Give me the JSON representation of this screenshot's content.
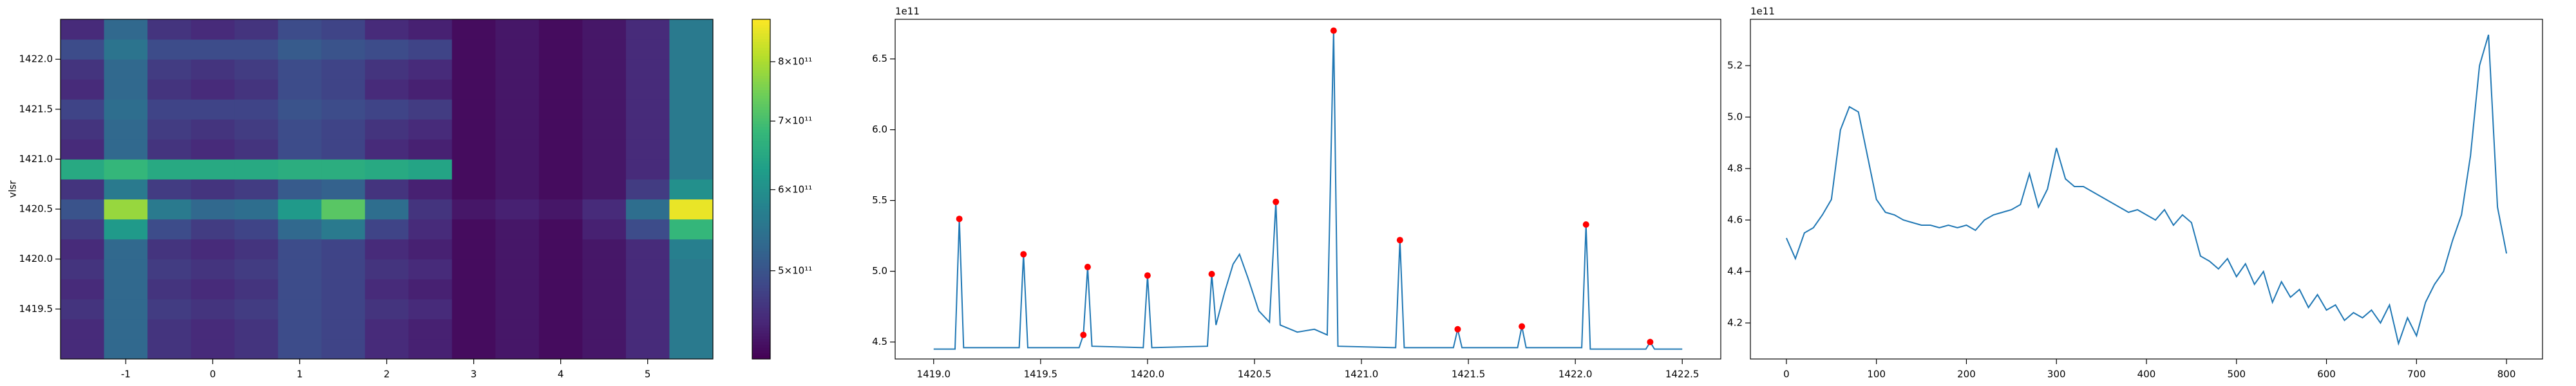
{
  "chart_data": [
    {
      "type": "heatmap",
      "ylabel": "vlsr",
      "x": [
        -1.5,
        -1,
        -0.5,
        0,
        0.5,
        1,
        1.5,
        2,
        2.5,
        3,
        3.5,
        4,
        4.5,
        5,
        5.5
      ],
      "y": [
        1419.1,
        1419.3,
        1419.5,
        1419.7,
        1419.9,
        1420.1,
        1420.3,
        1420.5,
        1420.7,
        1420.9,
        1421.1,
        1421.3,
        1421.5,
        1421.7,
        1421.9,
        1422.1,
        1422.3
      ],
      "z": [
        [
          450000000000.0,
          530000000000.0,
          460000000000.0,
          450000000000.0,
          460000000000.0,
          490000000000.0,
          480000000000.0,
          450000000000.0,
          440000000000.0,
          420000000000.0,
          430000000000.0,
          420000000000.0,
          430000000000.0,
          450000000000.0,
          560000000000.0
        ],
        [
          450000000000.0,
          530000000000.0,
          460000000000.0,
          450000000000.0,
          460000000000.0,
          490000000000.0,
          480000000000.0,
          450000000000.0,
          440000000000.0,
          420000000000.0,
          430000000000.0,
          420000000000.0,
          430000000000.0,
          450000000000.0,
          560000000000.0
        ],
        [
          460000000000.0,
          530000000000.0,
          470000000000.0,
          460000000000.0,
          470000000000.0,
          490000000000.0,
          480000000000.0,
          460000000000.0,
          450000000000.0,
          420000000000.0,
          430000000000.0,
          420000000000.0,
          430000000000.0,
          450000000000.0,
          560000000000.0
        ],
        [
          450000000000.0,
          530000000000.0,
          460000000000.0,
          450000000000.0,
          460000000000.0,
          490000000000.0,
          480000000000.0,
          450000000000.0,
          440000000000.0,
          420000000000.0,
          430000000000.0,
          420000000000.0,
          430000000000.0,
          450000000000.0,
          560000000000.0
        ],
        [
          460000000000.0,
          530000000000.0,
          470000000000.0,
          460000000000.0,
          470000000000.0,
          490000000000.0,
          480000000000.0,
          460000000000.0,
          450000000000.0,
          420000000000.0,
          430000000000.0,
          420000000000.0,
          430000000000.0,
          450000000000.0,
          560000000000.0
        ],
        [
          450000000000.0,
          530000000000.0,
          460000000000.0,
          450000000000.0,
          460000000000.0,
          490000000000.0,
          480000000000.0,
          450000000000.0,
          440000000000.0,
          420000000000.0,
          430000000000.0,
          420000000000.0,
          430000000000.0,
          450000000000.0,
          570000000000.0
        ],
        [
          470000000000.0,
          620000000000.0,
          490000000000.0,
          470000000000.0,
          480000000000.0,
          530000000000.0,
          560000000000.0,
          480000000000.0,
          450000000000.0,
          420000000000.0,
          430000000000.0,
          420000000000.0,
          440000000000.0,
          490000000000.0,
          680000000000.0
        ],
        [
          500000000000.0,
          780000000000.0,
          560000000000.0,
          530000000000.0,
          540000000000.0,
          620000000000.0,
          720000000000.0,
          540000000000.0,
          460000000000.0,
          430000000000.0,
          440000000000.0,
          430000000000.0,
          450000000000.0,
          540000000000.0,
          860000000000.0
        ],
        [
          460000000000.0,
          560000000000.0,
          470000000000.0,
          460000000000.0,
          470000000000.0,
          510000000000.0,
          520000000000.0,
          460000000000.0,
          440000000000.0,
          420000000000.0,
          430000000000.0,
          420000000000.0,
          430000000000.0,
          470000000000.0,
          600000000000.0
        ],
        [
          650000000000.0,
          680000000000.0,
          650000000000.0,
          650000000000.0,
          650000000000.0,
          660000000000.0,
          660000000000.0,
          650000000000.0,
          640000000000.0,
          420000000000.0,
          430000000000.0,
          420000000000.0,
          430000000000.0,
          450000000000.0,
          560000000000.0
        ],
        [
          450000000000.0,
          530000000000.0,
          460000000000.0,
          450000000000.0,
          460000000000.0,
          490000000000.0,
          480000000000.0,
          450000000000.0,
          440000000000.0,
          420000000000.0,
          430000000000.0,
          420000000000.0,
          430000000000.0,
          450000000000.0,
          560000000000.0
        ],
        [
          460000000000.0,
          530000000000.0,
          470000000000.0,
          460000000000.0,
          470000000000.0,
          490000000000.0,
          480000000000.0,
          460000000000.0,
          450000000000.0,
          420000000000.0,
          430000000000.0,
          420000000000.0,
          430000000000.0,
          450000000000.0,
          560000000000.0
        ],
        [
          480000000000.0,
          540000000000.0,
          480000000000.0,
          480000000000.0,
          480000000000.0,
          500000000000.0,
          490000000000.0,
          480000000000.0,
          470000000000.0,
          420000000000.0,
          430000000000.0,
          420000000000.0,
          430000000000.0,
          450000000000.0,
          560000000000.0
        ],
        [
          450000000000.0,
          530000000000.0,
          460000000000.0,
          450000000000.0,
          460000000000.0,
          490000000000.0,
          480000000000.0,
          450000000000.0,
          440000000000.0,
          420000000000.0,
          430000000000.0,
          420000000000.0,
          430000000000.0,
          450000000000.0,
          560000000000.0
        ],
        [
          460000000000.0,
          530000000000.0,
          470000000000.0,
          460000000000.0,
          470000000000.0,
          490000000000.0,
          480000000000.0,
          460000000000.0,
          450000000000.0,
          420000000000.0,
          430000000000.0,
          420000000000.0,
          430000000000.0,
          450000000000.0,
          560000000000.0
        ],
        [
          490000000000.0,
          550000000000.0,
          490000000000.0,
          490000000000.0,
          490000000000.0,
          510000000000.0,
          500000000000.0,
          490000000000.0,
          480000000000.0,
          420000000000.0,
          430000000000.0,
          420000000000.0,
          430000000000.0,
          450000000000.0,
          560000000000.0
        ],
        [
          450000000000.0,
          530000000000.0,
          460000000000.0,
          450000000000.0,
          460000000000.0,
          490000000000.0,
          480000000000.0,
          450000000000.0,
          440000000000.0,
          420000000000.0,
          430000000000.0,
          420000000000.0,
          430000000000.0,
          450000000000.0,
          560000000000.0
        ]
      ],
      "colormap": "viridis",
      "xlim": [
        -1.75,
        5.75
      ],
      "xticks": [
        -1,
        0,
        1,
        2,
        3,
        4,
        5
      ],
      "ylim": [
        1419.0,
        1422.4
      ],
      "yticks": [
        1419.5,
        {
          "value": 1420,
          "label": "1420.0"
        },
        1420.5,
        {
          "value": 1421,
          "label": "1421.0"
        },
        1421.5,
        {
          "value": 1422,
          "label": "1422.0"
        }
      ],
      "colorbar": {
        "lim": [
          410000000000.0,
          880000000000.0
        ],
        "log": true,
        "ticks": [
          {
            "value": 500000000000.0,
            "label": "5×10¹¹"
          },
          {
            "value": 600000000000.0,
            "label": "6×10¹¹"
          },
          {
            "value": 700000000000.0,
            "label": "7×10¹¹"
          },
          {
            "value": 800000000000.0,
            "label": "8×10¹¹"
          }
        ]
      }
    },
    {
      "type": "line",
      "color": "#1f77b4",
      "y_offset_label": "1e11",
      "x": [
        1419.0,
        1419.1,
        1419.12,
        1419.14,
        1419.4,
        1419.42,
        1419.44,
        1419.68,
        1419.7,
        1419.72,
        1419.74,
        1419.98,
        1420.0,
        1420.02,
        1420.28,
        1420.3,
        1420.32,
        1420.36,
        1420.4,
        1420.43,
        1420.47,
        1420.52,
        1420.57,
        1420.6,
        1420.62,
        1420.7,
        1420.78,
        1420.84,
        1420.87,
        1420.89,
        1421.16,
        1421.18,
        1421.2,
        1421.43,
        1421.45,
        1421.47,
        1421.73,
        1421.75,
        1421.77,
        1422.03,
        1422.05,
        1422.07,
        1422.33,
        1422.35,
        1422.37,
        1422.5
      ],
      "values": [
        4.45,
        4.45,
        5.37,
        4.46,
        4.46,
        5.12,
        4.46,
        4.46,
        4.55,
        5.03,
        4.47,
        4.46,
        4.97,
        4.46,
        4.47,
        4.98,
        4.62,
        4.85,
        5.05,
        5.12,
        4.95,
        4.72,
        4.64,
        5.49,
        4.62,
        4.57,
        4.59,
        4.55,
        6.7,
        4.47,
        4.46,
        5.22,
        4.46,
        4.46,
        4.59,
        4.46,
        4.46,
        4.61,
        4.46,
        4.46,
        5.33,
        4.45,
        4.45,
        4.5,
        4.45,
        4.45
      ],
      "peaks": {
        "color": "red",
        "x": [
          1419.12,
          1419.42,
          1419.7,
          1419.72,
          1420.0,
          1420.3,
          1420.6,
          1420.87,
          1421.18,
          1421.45,
          1421.75,
          1422.05,
          1422.35
        ],
        "values": [
          5.37,
          5.12,
          4.55,
          5.03,
          4.97,
          4.98,
          5.49,
          6.7,
          5.22,
          4.59,
          4.61,
          5.33,
          4.5
        ]
      },
      "xlim": [
        1418.82,
        1422.68
      ],
      "xticks": [
        {
          "value": 1419,
          "label": "1419.0"
        },
        1419.5,
        {
          "value": 1420,
          "label": "1420.0"
        },
        1420.5,
        {
          "value": 1421,
          "label": "1421.0"
        },
        1421.5,
        {
          "value": 1422,
          "label": "1422.0"
        },
        1422.5
      ],
      "ylim": [
        4.38,
        6.78
      ],
      "yticks": [
        4.5,
        {
          "value": 5,
          "label": "5.0"
        },
        5.5,
        {
          "value": 6,
          "label": "6.0"
        },
        6.5
      ]
    },
    {
      "type": "line",
      "color": "#1f77b4",
      "y_offset_label": "1e11",
      "x": [
        0,
        10,
        20,
        30,
        40,
        50,
        60,
        70,
        80,
        90,
        100,
        110,
        120,
        130,
        140,
        150,
        160,
        170,
        180,
        190,
        200,
        210,
        220,
        230,
        240,
        250,
        260,
        270,
        280,
        290,
        300,
        310,
        320,
        330,
        340,
        350,
        360,
        370,
        380,
        390,
        400,
        410,
        420,
        430,
        440,
        450,
        460,
        470,
        480,
        490,
        500,
        510,
        520,
        530,
        540,
        550,
        560,
        570,
        580,
        590,
        600,
        610,
        620,
        630,
        640,
        650,
        660,
        670,
        680,
        690,
        700,
        710,
        720,
        730,
        740,
        750,
        760,
        770,
        780,
        790,
        800
      ],
      "values": [
        4.53,
        4.45,
        4.55,
        4.57,
        4.62,
        4.68,
        4.95,
        5.04,
        5.02,
        4.85,
        4.68,
        4.63,
        4.62,
        4.6,
        4.59,
        4.58,
        4.58,
        4.57,
        4.58,
        4.57,
        4.58,
        4.56,
        4.6,
        4.62,
        4.63,
        4.64,
        4.66,
        4.78,
        4.65,
        4.72,
        4.88,
        4.76,
        4.73,
        4.73,
        4.71,
        4.69,
        4.67,
        4.65,
        4.63,
        4.64,
        4.62,
        4.6,
        4.64,
        4.58,
        4.62,
        4.59,
        4.46,
        4.44,
        4.41,
        4.45,
        4.38,
        4.43,
        4.35,
        4.4,
        4.28,
        4.36,
        4.3,
        4.33,
        4.26,
        4.31,
        4.25,
        4.27,
        4.21,
        4.24,
        4.22,
        4.25,
        4.2,
        4.27,
        4.12,
        4.22,
        4.15,
        4.28,
        4.35,
        4.4,
        4.52,
        4.62,
        4.85,
        5.2,
        5.32,
        4.65,
        4.47
      ],
      "xlim": [
        -40,
        840
      ],
      "xticks": [
        0,
        100,
        200,
        300,
        400,
        500,
        600,
        700,
        800
      ],
      "ylim": [
        4.06,
        5.38
      ],
      "yticks": [
        4.2,
        4.4,
        4.6,
        4.8,
        {
          "value": 5,
          "label": "5.0"
        },
        5.2
      ]
    }
  ]
}
